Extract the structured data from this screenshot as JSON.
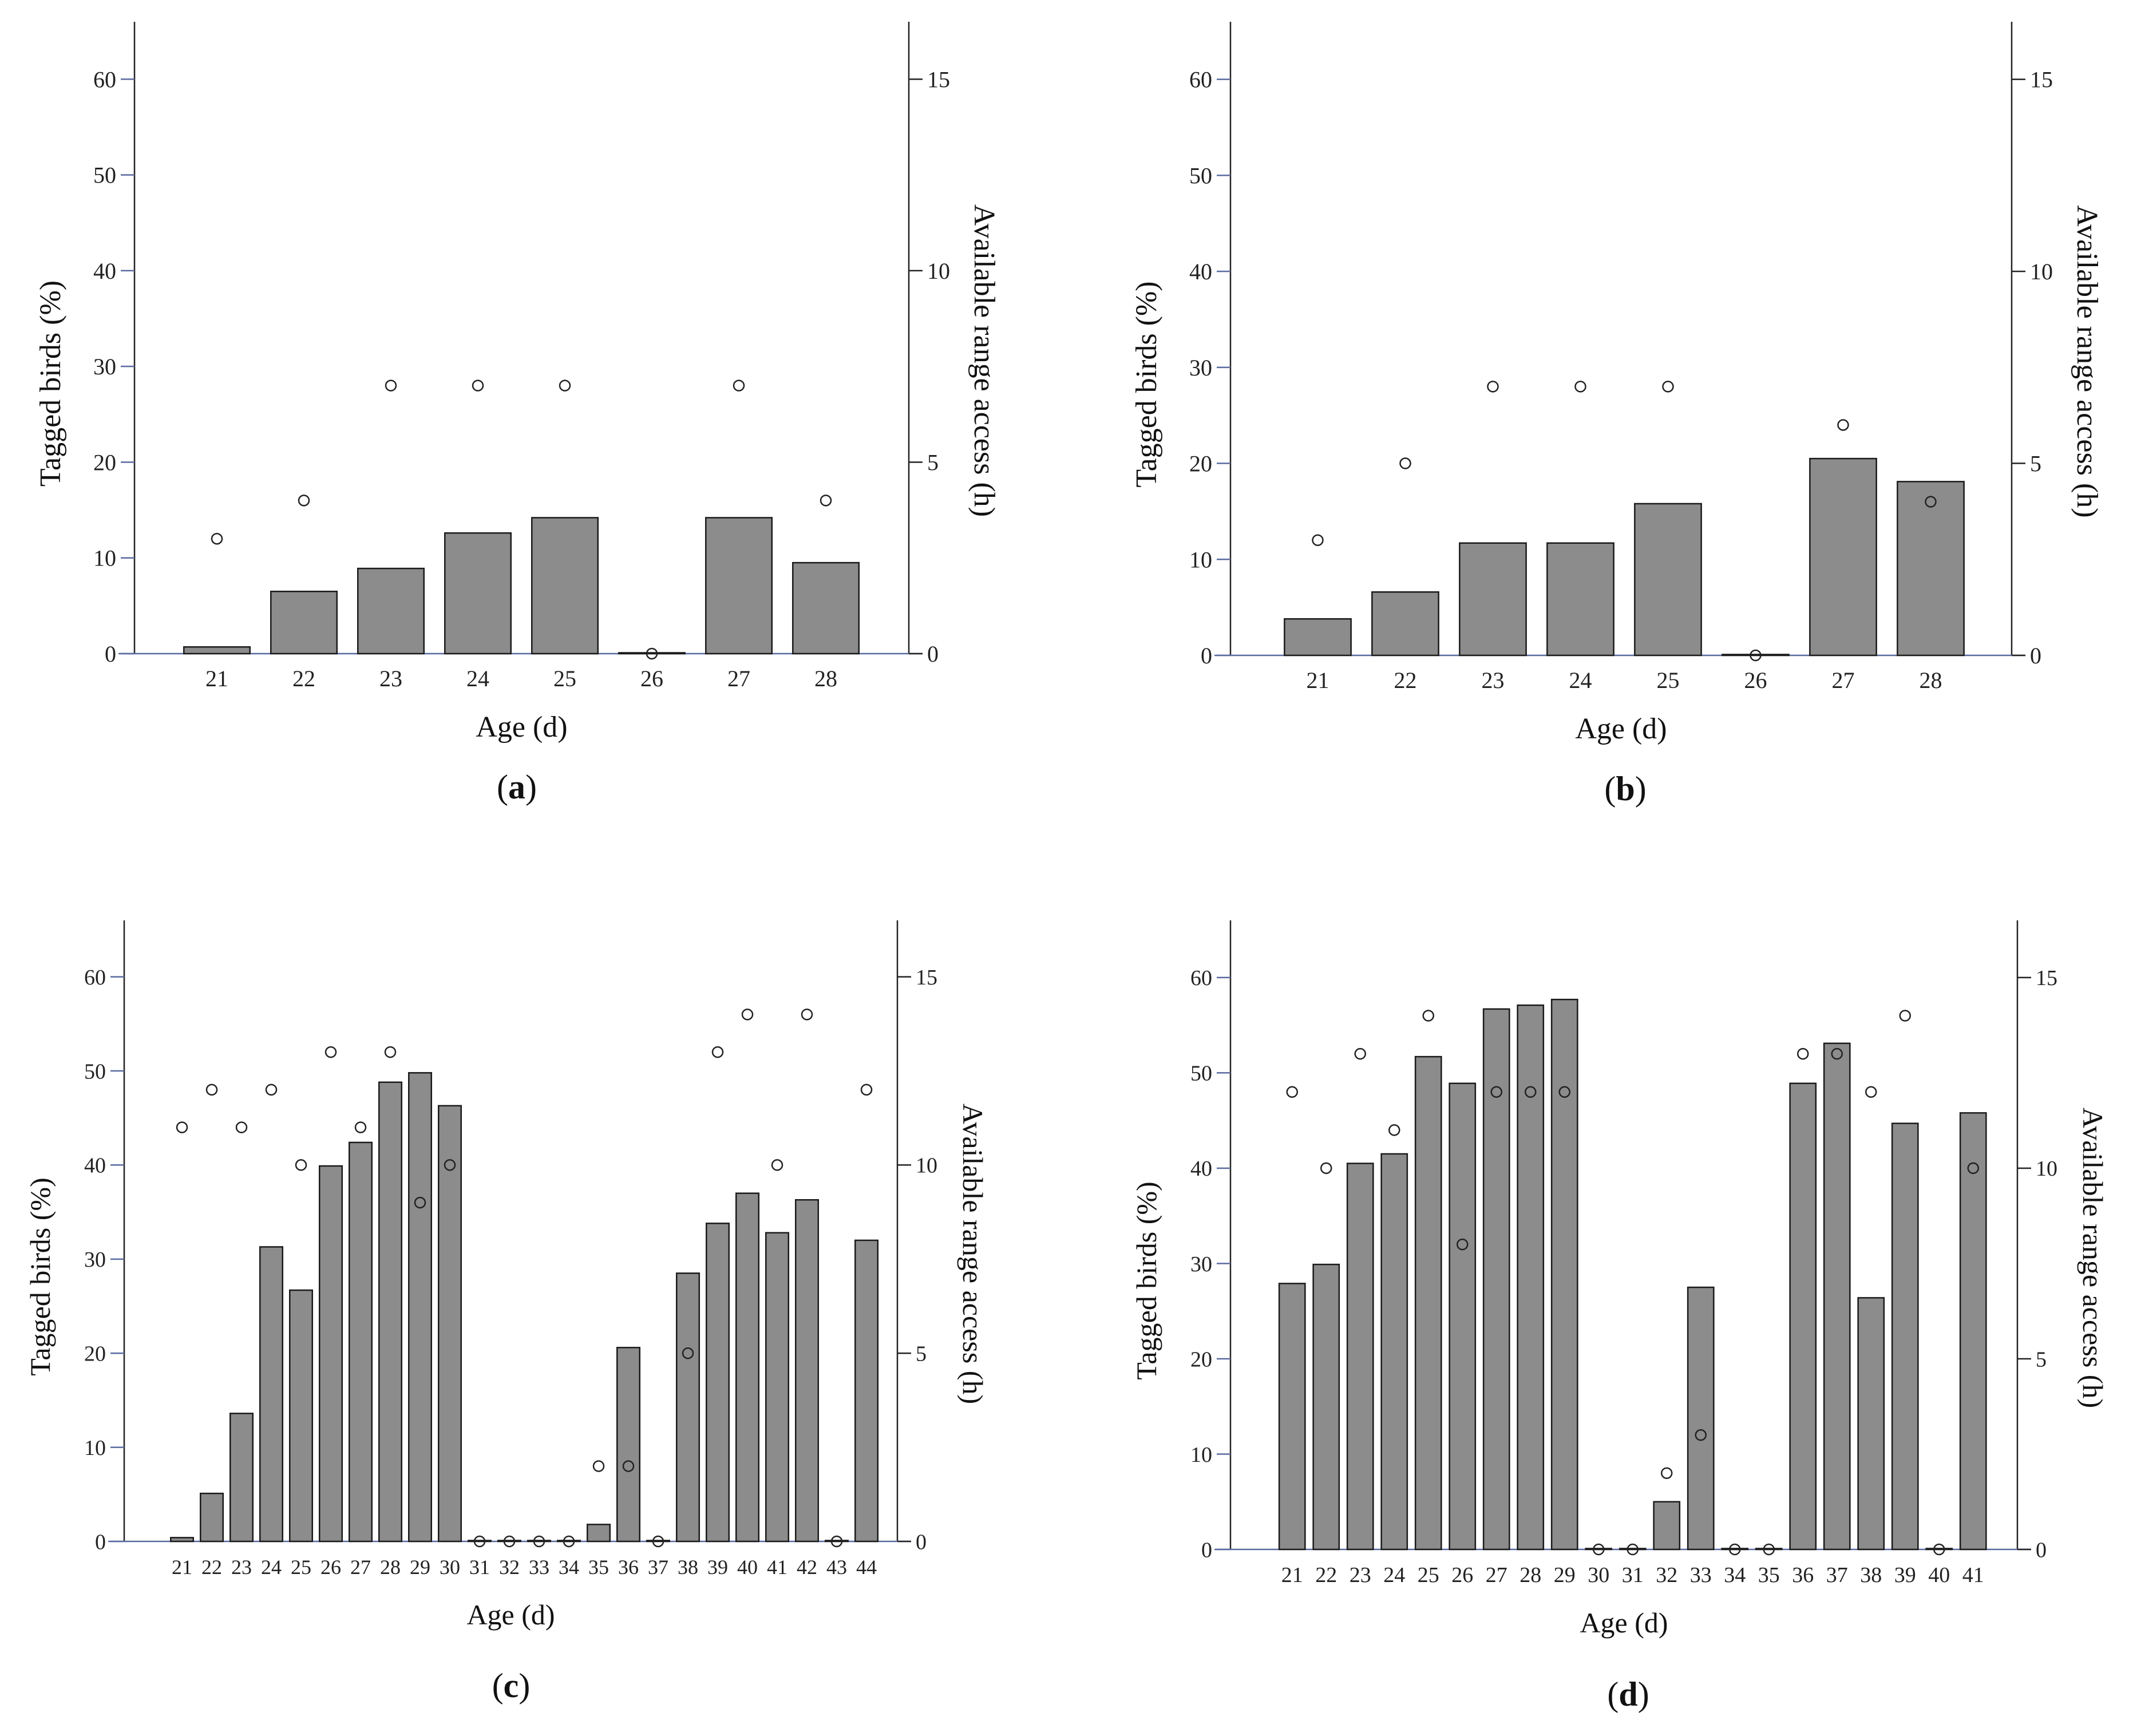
{
  "colors": {
    "bar_fill": "#8c8c8c",
    "bar_stroke": "#1a1a1a",
    "axis": "#222222",
    "tick_mark": "#5a6aa0",
    "marker_stroke": "#222222"
  },
  "chart_data": [
    {
      "id": "a",
      "panel_label": "a",
      "type": "bar",
      "overlay": "scatter",
      "xlabel": "Age (d)",
      "ylabel": "Tagged birds (%)",
      "y2label": "Available range access (h)",
      "ylim": [
        0,
        66
      ],
      "yticks": [
        0,
        10,
        20,
        30,
        40,
        50,
        60
      ],
      "y2lim": [
        0,
        16.5
      ],
      "y2ticks": [
        0,
        5,
        10,
        15
      ],
      "categories": [
        "21",
        "22",
        "23",
        "24",
        "25",
        "26",
        "27",
        "28"
      ],
      "series": [
        {
          "name": "Tagged birds (%)",
          "axis": "left",
          "kind": "bar",
          "values": [
            0.7,
            6.5,
            8.9,
            12.6,
            14.2,
            0,
            14.2,
            9.5
          ]
        },
        {
          "name": "Available range access (h)",
          "axis": "right",
          "kind": "marker",
          "values": [
            3,
            4,
            7,
            7,
            7,
            0,
            7,
            4
          ]
        }
      ]
    },
    {
      "id": "b",
      "panel_label": "b",
      "type": "bar",
      "overlay": "scatter",
      "xlabel": "Age (d)",
      "ylabel": "Tagged birds (%)",
      "y2label": "Available range access (h)",
      "ylim": [
        0,
        66
      ],
      "yticks": [
        0,
        10,
        20,
        30,
        40,
        50,
        60
      ],
      "y2lim": [
        0,
        16.5
      ],
      "y2ticks": [
        0,
        5,
        10,
        15
      ],
      "categories": [
        "21",
        "22",
        "23",
        "24",
        "25",
        "26",
        "27",
        "28"
      ],
      "series": [
        {
          "name": "Tagged birds (%)",
          "axis": "left",
          "kind": "bar",
          "values": [
            3.8,
            6.6,
            11.7,
            11.7,
            15.8,
            0,
            20.5,
            18.1
          ]
        },
        {
          "name": "Available range access (h)",
          "axis": "right",
          "kind": "marker",
          "values": [
            3,
            5,
            7,
            7,
            7,
            0,
            6,
            4
          ]
        }
      ]
    },
    {
      "id": "c",
      "panel_label": "c",
      "type": "bar",
      "overlay": "scatter",
      "xlabel": "Age (d)",
      "ylabel": "Tagged birds (%)",
      "y2label": "Available range access (h)",
      "ylim": [
        0,
        66
      ],
      "yticks": [
        0,
        10,
        20,
        30,
        40,
        50,
        60
      ],
      "y2lim": [
        0,
        16.5
      ],
      "y2ticks": [
        0,
        5,
        10,
        15
      ],
      "categories": [
        "21",
        "22",
        "23",
        "24",
        "25",
        "26",
        "27",
        "28",
        "29",
        "30",
        "31",
        "32",
        "33",
        "34",
        "35",
        "36",
        "37",
        "38",
        "39",
        "40",
        "41",
        "42",
        "43",
        "44"
      ],
      "series": [
        {
          "name": "Tagged birds (%)",
          "axis": "left",
          "kind": "bar",
          "values": [
            0.4,
            5.1,
            13.6,
            31.3,
            26.7,
            39.9,
            42.4,
            48.8,
            49.8,
            46.3,
            0,
            0,
            0,
            0,
            1.8,
            20.6,
            0,
            28.5,
            33.8,
            37.0,
            32.8,
            36.3,
            0,
            32.0
          ]
        },
        {
          "name": "Available range access (h)",
          "axis": "right",
          "kind": "marker",
          "values": [
            11,
            12,
            11,
            12,
            10,
            13,
            11,
            13,
            9,
            10,
            0,
            0,
            0,
            0,
            2,
            2,
            0,
            5,
            13,
            14,
            10,
            14,
            0,
            12
          ]
        }
      ]
    },
    {
      "id": "d",
      "panel_label": "d",
      "type": "bar",
      "overlay": "scatter",
      "xlabel": "Age (d)",
      "ylabel": "Tagged birds (%)",
      "y2label": "Available range access (h)",
      "ylim": [
        0,
        66
      ],
      "yticks": [
        0,
        10,
        20,
        30,
        40,
        50,
        60
      ],
      "y2lim": [
        0,
        16.5
      ],
      "y2ticks": [
        0,
        5,
        10,
        15
      ],
      "categories": [
        "21",
        "22",
        "23",
        "24",
        "25",
        "26",
        "27",
        "28",
        "29",
        "30",
        "31",
        "32",
        "33",
        "34",
        "35",
        "36",
        "37",
        "38",
        "39",
        "40",
        "41"
      ],
      "series": [
        {
          "name": "Tagged birds (%)",
          "axis": "left",
          "kind": "bar",
          "values": [
            27.9,
            29.9,
            40.5,
            41.5,
            51.7,
            48.9,
            56.7,
            57.1,
            57.7,
            0,
            0,
            5.0,
            27.5,
            0,
            0,
            48.9,
            53.1,
            26.4,
            44.7,
            0,
            45.8
          ]
        },
        {
          "name": "Available range access (h)",
          "axis": "right",
          "kind": "marker",
          "values": [
            12,
            10,
            13,
            11,
            14,
            8,
            12,
            12,
            12,
            0,
            0,
            2,
            3,
            0,
            0,
            13,
            13,
            12,
            14,
            0,
            10
          ]
        }
      ]
    }
  ]
}
